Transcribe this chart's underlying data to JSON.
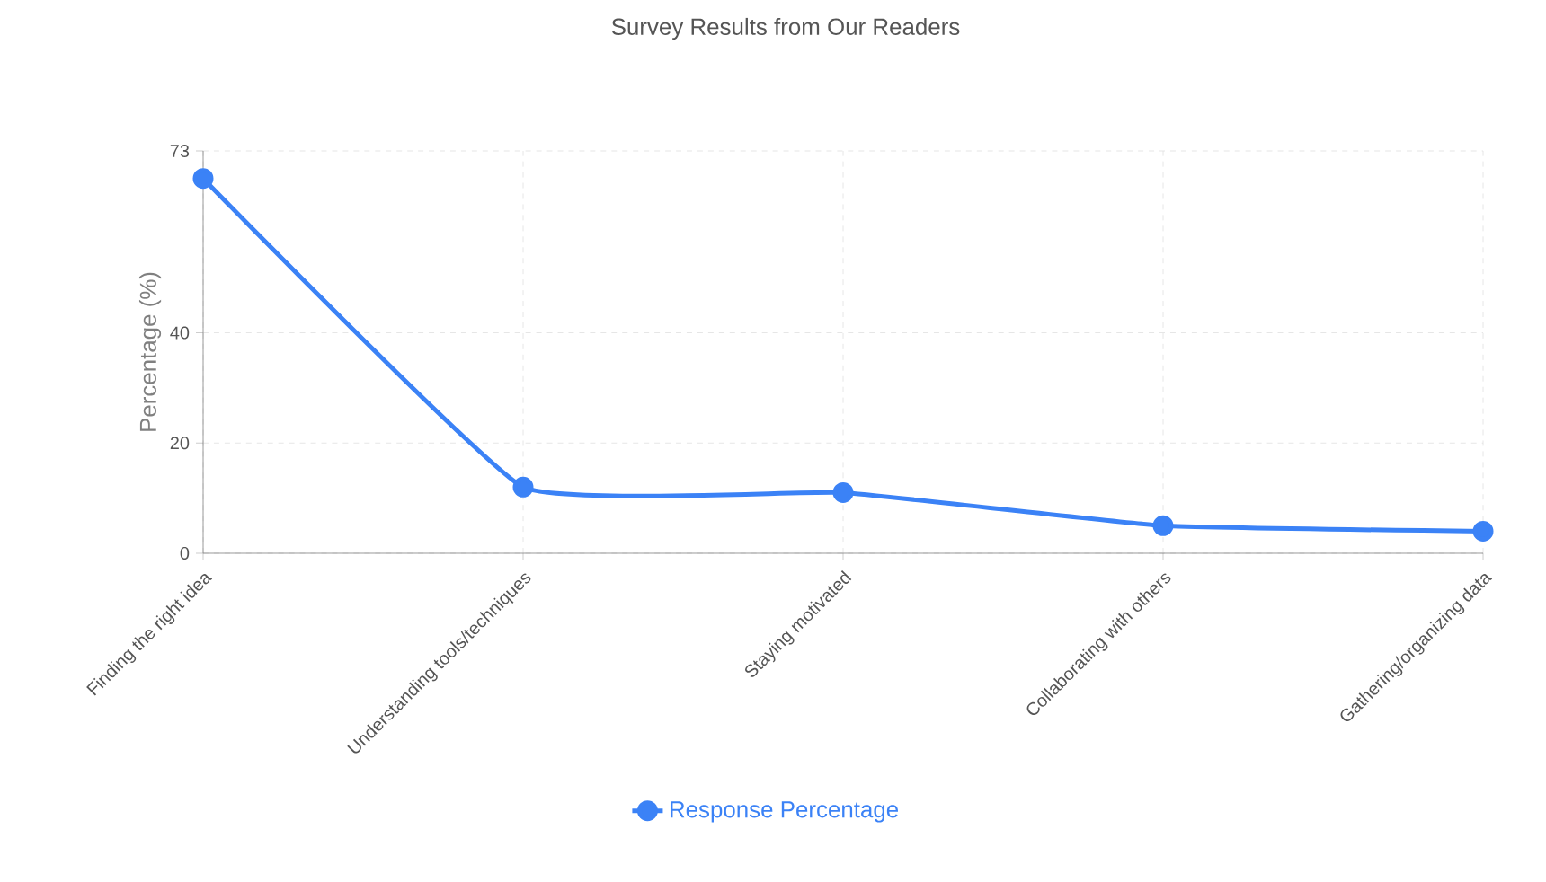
{
  "chart_data": {
    "type": "line",
    "title": "Survey Results from Our Readers",
    "ylabel": "Percentage (%)",
    "categories": [
      "Finding the right idea",
      "Understanding tools/techniques",
      "Staying motivated",
      "Collaborating with others",
      "Gathering/organizing data"
    ],
    "series": [
      {
        "name": "Response Percentage",
        "color": "#3b82f6",
        "values": [
          68,
          12,
          11,
          5,
          4
        ]
      }
    ],
    "ylim": [
      0,
      73
    ],
    "yticks": [
      0,
      20,
      40,
      73
    ],
    "grid": true,
    "legend": "bottom",
    "marker": "circle",
    "line_style": "solid"
  }
}
